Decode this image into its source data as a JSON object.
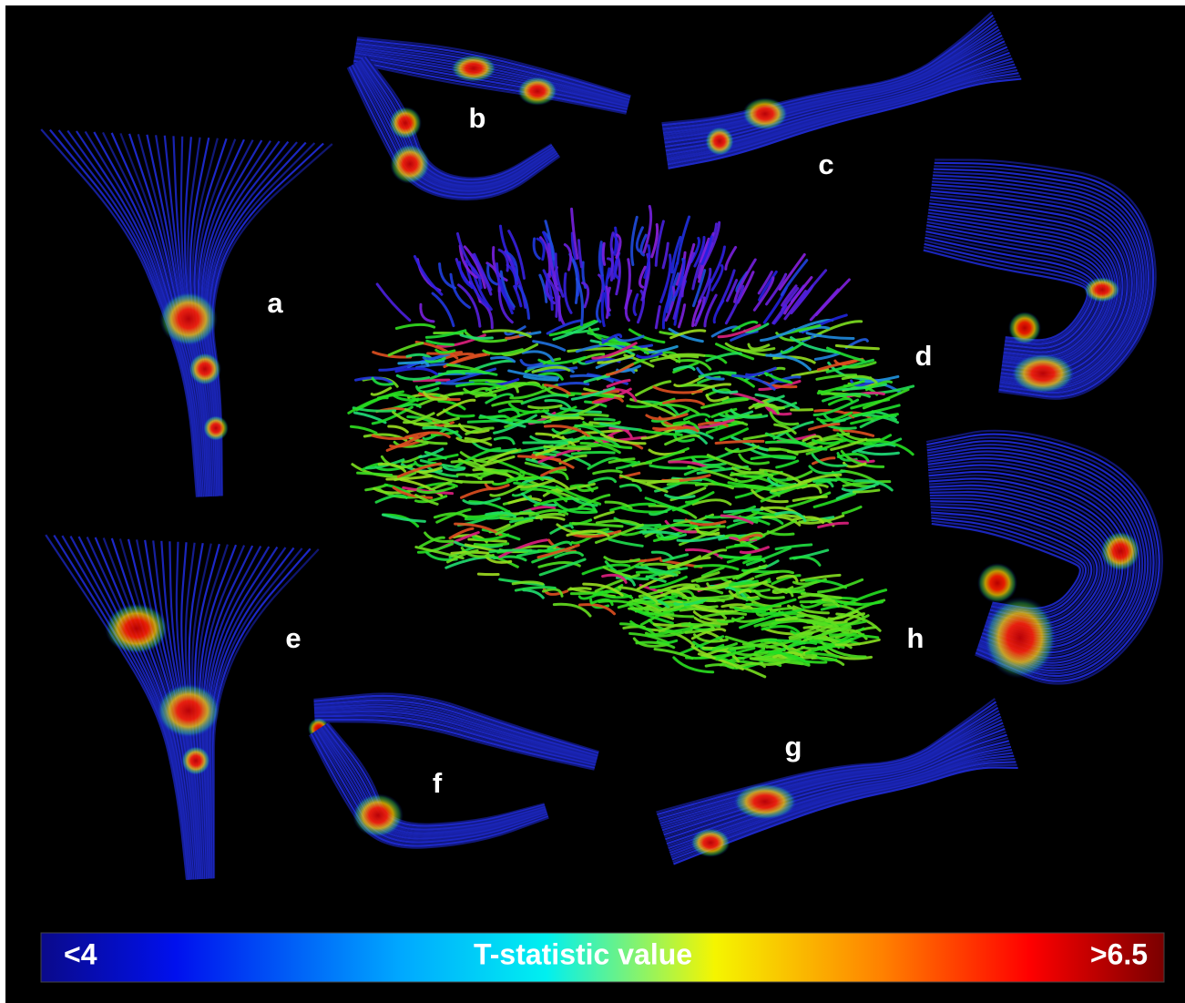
{
  "panels": [
    {
      "label": "a"
    },
    {
      "label": "b"
    },
    {
      "label": "c"
    },
    {
      "label": "d"
    },
    {
      "label": "e"
    },
    {
      "label": "f"
    },
    {
      "label": "g"
    },
    {
      "label": "h"
    }
  ],
  "colorbar": {
    "min_label": "<4",
    "title": "T-statistic value",
    "max_label": ">6.5"
  }
}
